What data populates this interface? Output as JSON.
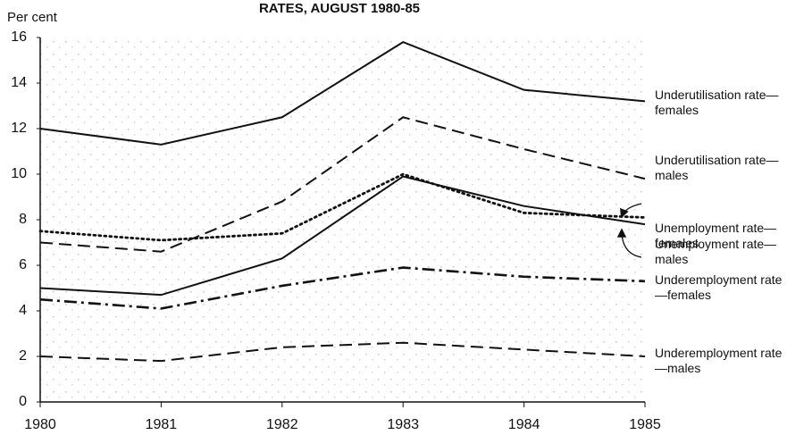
{
  "chart_data": {
    "type": "line",
    "title": "RATES, AUGUST 1980-85",
    "y_label": "Per cent",
    "x": [
      1980,
      1981,
      1982,
      1983,
      1984,
      1985
    ],
    "xlim": [
      1980,
      1985
    ],
    "xticks": [
      1980,
      1981,
      1982,
      1983,
      1984,
      1985
    ],
    "ylim": [
      0,
      16
    ],
    "yticks": [
      0,
      2,
      4,
      6,
      8,
      10,
      12,
      14,
      16
    ],
    "series": [
      {
        "name": "Underutilisation rate—females",
        "color": "#111111",
        "dash": "solid",
        "values": [
          12.0,
          11.3,
          12.5,
          15.8,
          13.7,
          13.2
        ]
      },
      {
        "name": "Underutilisation rate—males",
        "color": "#111111",
        "dash": "dashed",
        "values": [
          7.0,
          6.6,
          8.8,
          12.5,
          11.1,
          9.8
        ]
      },
      {
        "name": "Unemployment rate—females",
        "color": "#111111",
        "dash": "dotted",
        "values": [
          7.5,
          7.1,
          7.4,
          10.0,
          8.3,
          8.1
        ]
      },
      {
        "name": "Unemployment rate—males",
        "color": "#111111",
        "dash": "solid",
        "values": [
          5.0,
          4.7,
          6.3,
          9.9,
          8.6,
          7.8
        ]
      },
      {
        "name": "Underemployment rate—females",
        "color": "#111111",
        "dash": "dashdot",
        "values": [
          4.5,
          4.1,
          5.1,
          5.9,
          5.5,
          5.3
        ]
      },
      {
        "name": "Underemployment rate—males",
        "color": "#111111",
        "dash": "dashed",
        "values": [
          2.0,
          1.8,
          2.4,
          2.6,
          2.3,
          2.0
        ]
      }
    ]
  }
}
